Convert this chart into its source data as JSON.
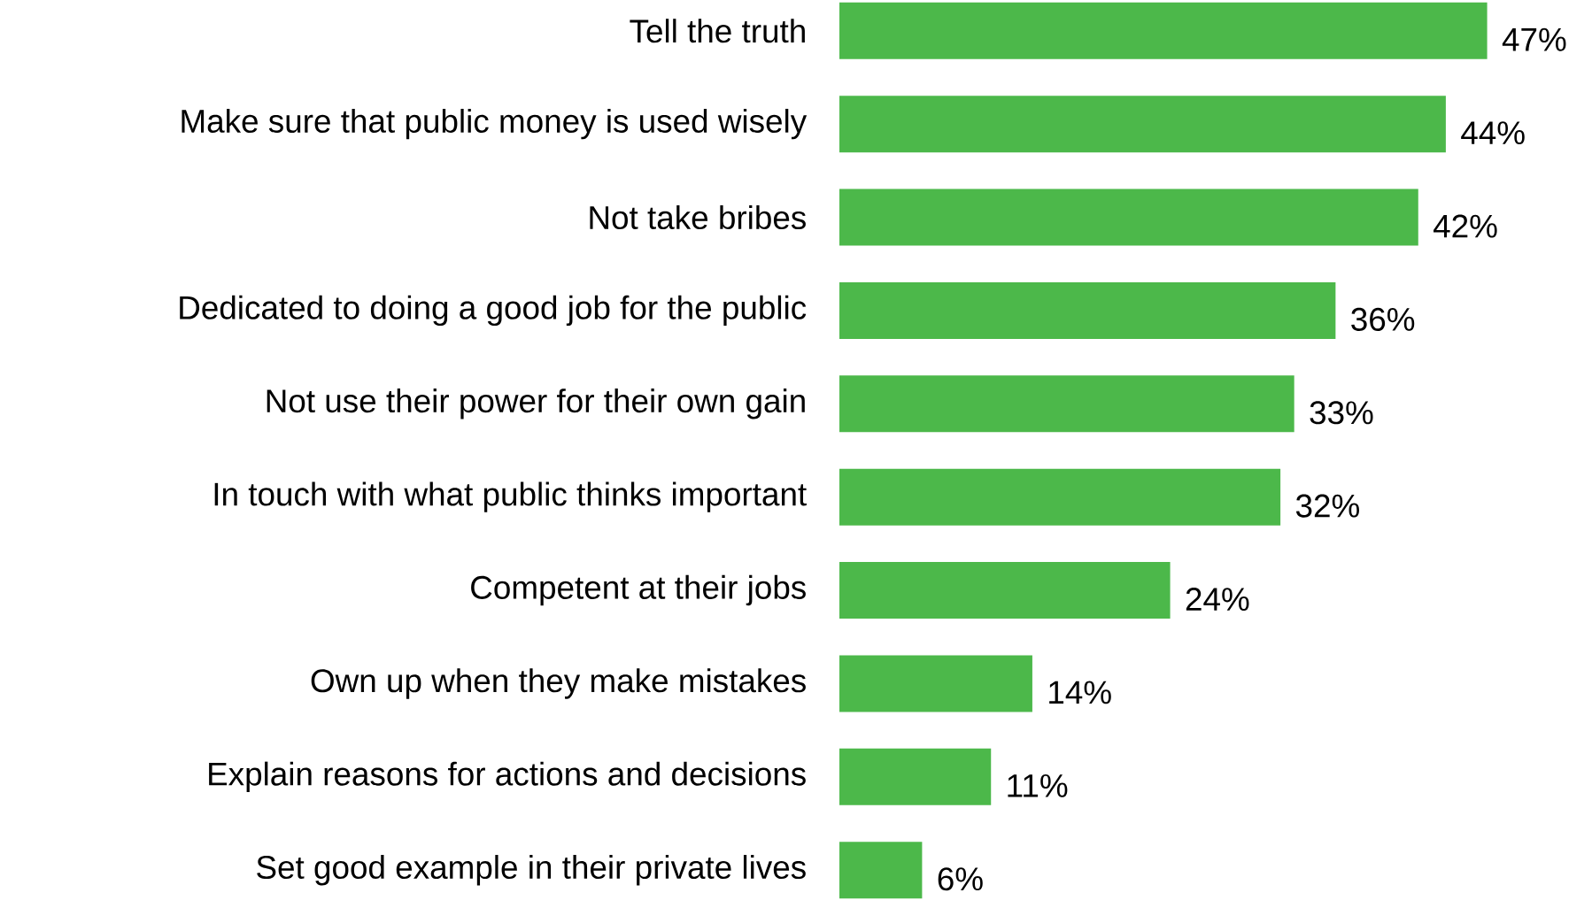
{
  "chart_data": {
    "type": "bar",
    "orientation": "horizontal",
    "color": "#4cb84a",
    "categories": [
      "Tell the truth",
      "Make sure that public money is used wisely",
      "Not take bribes",
      "Dedicated to doing a good job for the public",
      "Not use their power for their own gain",
      "In touch with what public thinks important",
      "Competent at their jobs",
      "Own up when they make mistakes",
      "Explain reasons for actions and decisions",
      "Set good example in their private lives"
    ],
    "values": [
      47,
      44,
      42,
      36,
      33,
      32,
      24,
      14,
      11,
      6
    ],
    "value_labels": [
      "47%",
      "44%",
      "42%",
      "36%",
      "33%",
      "32%",
      "24%",
      "14%",
      "11%",
      "6%"
    ]
  }
}
